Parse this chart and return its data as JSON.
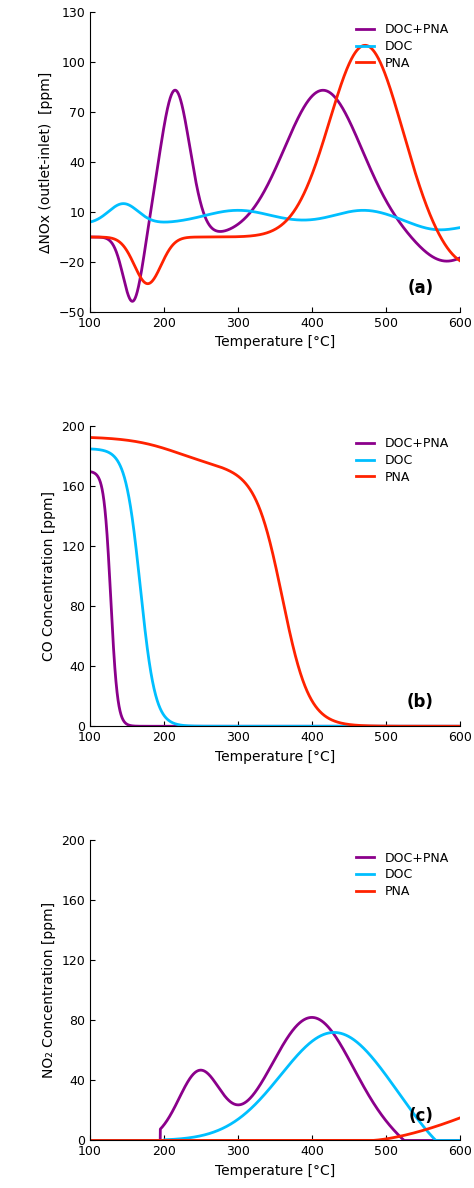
{
  "colors": {
    "doc_pna": "#8B008B",
    "doc": "#00BFFF",
    "pna": "#FF2200"
  },
  "panel_a": {
    "title": "(a)",
    "ylabel": "ΔNOx (outlet-inlet)  [ppm]",
    "xlabel": "Temperature [°C]",
    "xlim": [
      100,
      600
    ],
    "ylim": [
      -50,
      130
    ],
    "yticks": [
      -50,
      -20,
      10,
      40,
      70,
      100,
      130
    ],
    "xticks": [
      100,
      200,
      300,
      400,
      500,
      600
    ]
  },
  "panel_b": {
    "title": "(b)",
    "ylabel": "CO Concentration [ppm]",
    "xlabel": "Temperature [°C]",
    "xlim": [
      100,
      600
    ],
    "ylim": [
      0,
      200
    ],
    "yticks": [
      0,
      40,
      80,
      120,
      160,
      200
    ],
    "xticks": [
      100,
      200,
      300,
      400,
      500,
      600
    ]
  },
  "panel_c": {
    "title": "(c)",
    "ylabel": "NO₂ Concentration [ppm]",
    "xlabel": "Temperature [°C]",
    "xlim": [
      100,
      600
    ],
    "ylim": [
      0,
      200
    ],
    "yticks": [
      0,
      40,
      80,
      120,
      160,
      200
    ],
    "xticks": [
      100,
      200,
      300,
      400,
      500,
      600
    ]
  },
  "legend_labels": [
    "DOC+PNA",
    "DOC",
    "PNA"
  ],
  "line_width": 2.0
}
